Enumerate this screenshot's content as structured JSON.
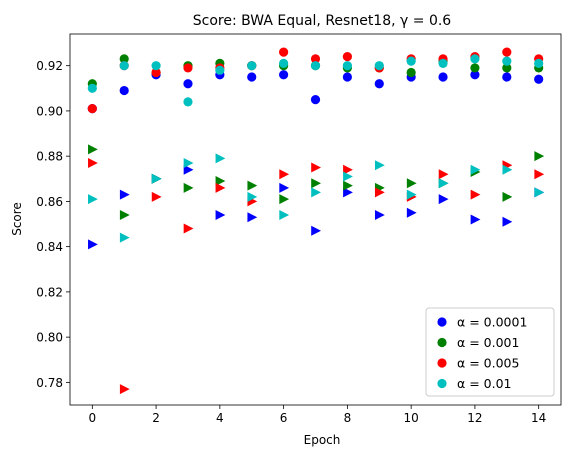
{
  "chart_data": {
    "type": "scatter",
    "title": "Score: BWA Equal, Resnet18, γ = 0.6",
    "xlabel": "Epoch",
    "ylabel": "Score",
    "xlim": [
      -0.7,
      14.7
    ],
    "ylim": [
      0.77,
      0.934
    ],
    "xticks": [
      0,
      2,
      4,
      6,
      8,
      10,
      12,
      14
    ],
    "yticks": [
      0.78,
      0.8,
      0.82,
      0.84,
      0.86,
      0.88,
      0.9,
      0.92
    ],
    "ytick_labels": [
      "0.78",
      "0.80",
      "0.82",
      "0.84",
      "0.86",
      "0.88",
      "0.90",
      "0.92"
    ],
    "grid": false,
    "legend_position": "lower-right",
    "marker_shapes": {
      "circle": "circle",
      "triangle": "triangle-right"
    },
    "series": [
      {
        "name": "α = 0.0001",
        "color": "#0000ff",
        "circle": [
          0.901,
          0.909,
          0.916,
          0.912,
          0.916,
          0.915,
          0.916,
          0.905,
          0.915,
          0.912,
          0.915,
          0.915,
          0.916,
          0.915,
          0.914
        ],
        "triangle": [
          0.841,
          0.863,
          0.87,
          0.874,
          0.854,
          0.853,
          0.866,
          0.847,
          0.864,
          0.854,
          0.855,
          0.861,
          0.852,
          0.851,
          0.864
        ]
      },
      {
        "name": "α = 0.001",
        "color": "#008000",
        "circle": [
          0.912,
          0.923,
          0.917,
          0.92,
          0.921,
          0.92,
          0.92,
          0.92,
          0.919,
          0.919,
          0.917,
          0.922,
          0.919,
          0.919,
          0.919
        ],
        "triangle": [
          0.883,
          0.854,
          0.87,
          0.866,
          0.869,
          0.867,
          0.861,
          0.868,
          0.867,
          0.866,
          0.868,
          0.868,
          0.873,
          0.862,
          0.88
        ]
      },
      {
        "name": "α = 0.005",
        "color": "#ff0000",
        "circle": [
          0.901,
          0.92,
          0.917,
          0.919,
          0.919,
          0.92,
          0.926,
          0.923,
          0.924,
          0.919,
          0.923,
          0.923,
          0.924,
          0.926,
          0.923
        ],
        "triangle": [
          0.877,
          0.777,
          0.862,
          0.848,
          0.866,
          0.86,
          0.872,
          0.875,
          0.874,
          0.864,
          0.862,
          0.872,
          0.863,
          0.876,
          0.872
        ]
      },
      {
        "name": "α = 0.01",
        "color": "#00bfbf",
        "circle": [
          0.91,
          0.92,
          0.92,
          0.904,
          0.918,
          0.92,
          0.921,
          0.92,
          0.92,
          0.92,
          0.922,
          0.921,
          0.923,
          0.922,
          0.921
        ],
        "triangle": [
          0.861,
          0.844,
          0.87,
          0.877,
          0.879,
          0.862,
          0.854,
          0.864,
          0.871,
          0.876,
          0.863,
          0.868,
          0.874,
          0.874,
          0.864
        ]
      }
    ]
  }
}
